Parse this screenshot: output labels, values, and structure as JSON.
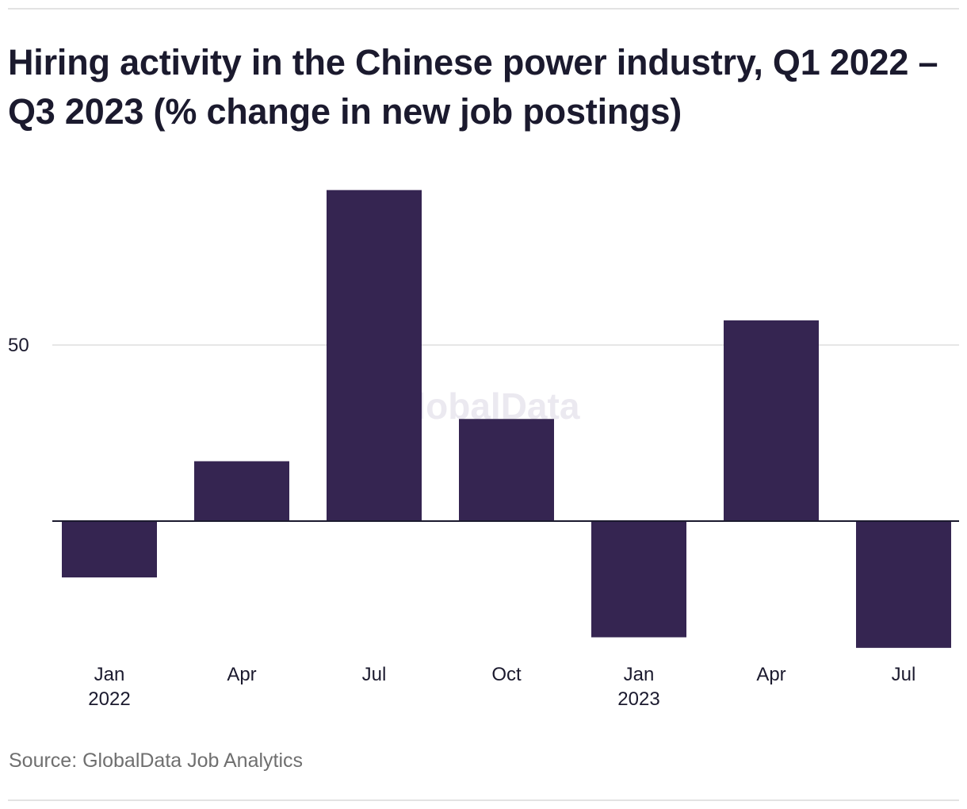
{
  "title": "Hiring activity in the Chinese power industry, Q1 2022 – Q3 2023 (% change in new job postings)",
  "source": "Source: GlobalData Job Analytics",
  "watermark": "GlobalData",
  "colors": {
    "bar": "#352551",
    "gridline": "#dddddd",
    "baseline": "#1b1a2e",
    "text": "#1b1a2e",
    "watermark": "#ebe9f0"
  },
  "chart_data": {
    "type": "bar",
    "categories": [
      "Q1 2022",
      "Q2 2022",
      "Q3 2022",
      "Q4 2022",
      "Q1 2023",
      "Q2 2023",
      "Q3 2023"
    ],
    "tick_labels": [
      [
        "Jan",
        "2022"
      ],
      [
        "Apr"
      ],
      [
        "Jul"
      ],
      [
        "Oct"
      ],
      [
        "Jan",
        "2023"
      ],
      [
        "Apr"
      ],
      [
        "Jul"
      ]
    ],
    "values": [
      -16,
      17,
      94,
      29,
      -33,
      57,
      -36
    ],
    "ylim": [
      -40,
      100
    ],
    "yticks": [
      50
    ],
    "grid": true,
    "legend": "none"
  }
}
